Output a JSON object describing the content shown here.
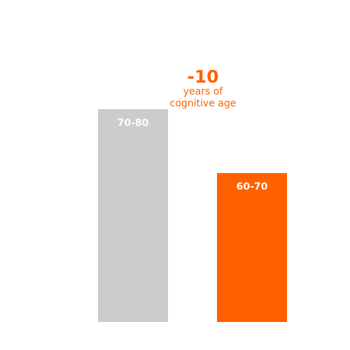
{
  "chart_data": {
    "type": "bar",
    "categories": [
      "70-80",
      "60-70"
    ],
    "values": [
      10,
      7
    ],
    "colors": [
      "#cccccc",
      "#ff6000"
    ],
    "title": "",
    "xlabel": "",
    "ylabel": "",
    "ylim": [
      0,
      10
    ],
    "grid": false,
    "annotation": {
      "value": "-10",
      "line1": "years of",
      "line2": "cognitive age",
      "color": "#ff6000"
    }
  }
}
